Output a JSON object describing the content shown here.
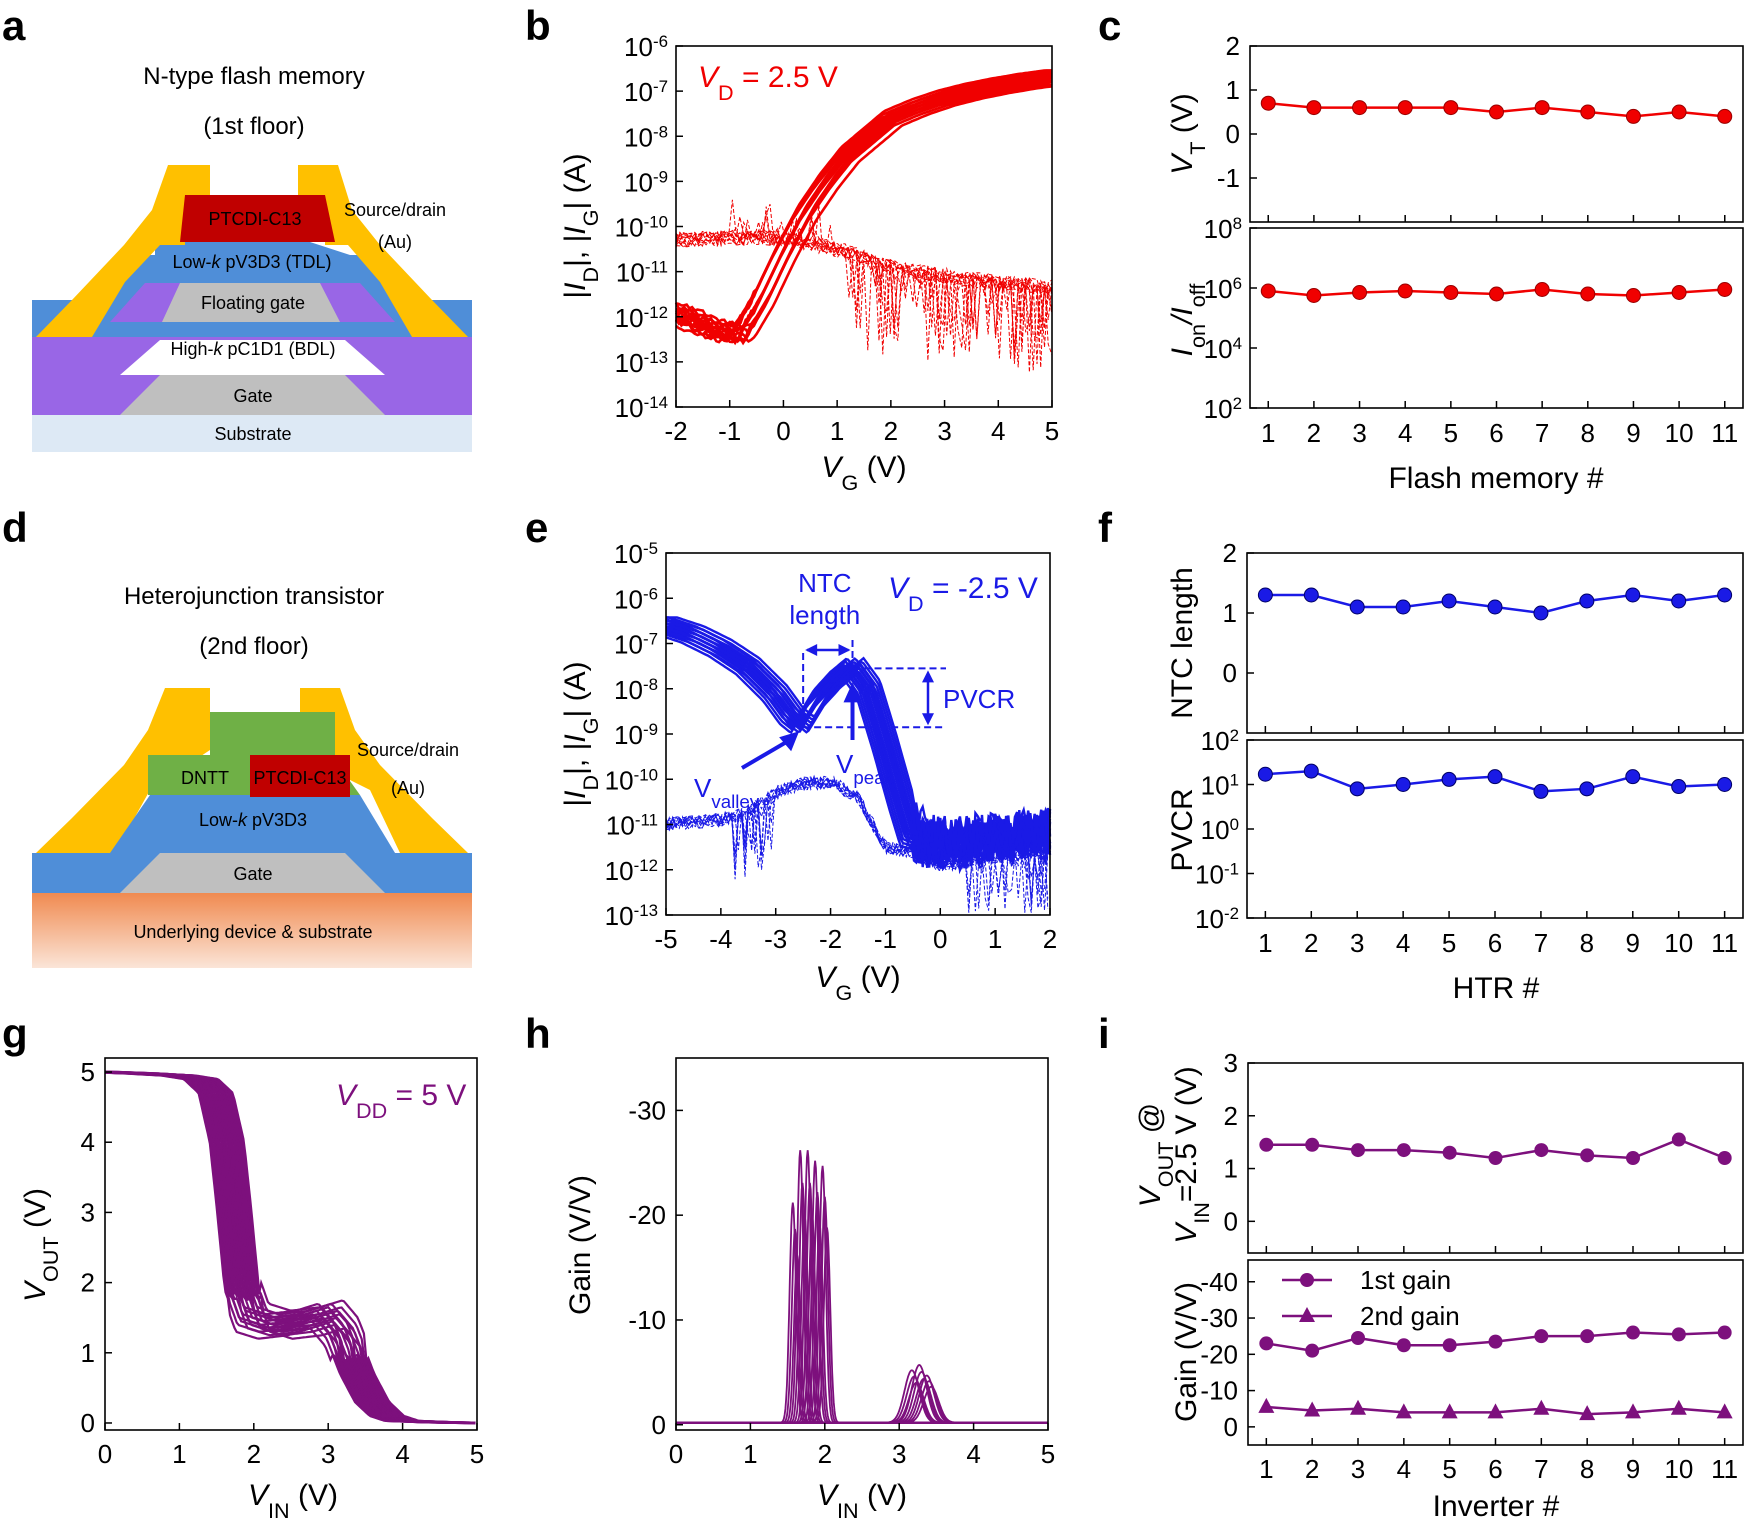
{
  "panels": {
    "a": "a",
    "b": "b",
    "c": "c",
    "d": "d",
    "e": "e",
    "f": "f",
    "g": "g",
    "h": "h",
    "i": "i"
  },
  "colors": {
    "red": "#f00000",
    "blue": "#1a1ae6",
    "purple": "#7d107d",
    "gold": "#ffc000",
    "blue_layer": "#4f8ed8",
    "purple_layer": "#9966e6",
    "gray": "#bfbfbf",
    "red_layer": "#c00000",
    "green": "#6fb046",
    "substrate": "#dde9f5",
    "orange": "#f4a46c"
  },
  "schematic_a": {
    "title": "N-type flash memory",
    "subtitle": "(1st floor)",
    "layers": {
      "semiconductor": "PTCDI-C13",
      "tdl_prefix": "Low-",
      "tdl_k": "k",
      "tdl_suffix": " pV3D3 (TDL)",
      "floating_gate": "Floating gate",
      "bdl_prefix": "High-",
      "bdl_k": "k",
      "bdl_suffix": " pC1D1 (BDL)",
      "gate": "Gate",
      "substrate": "Substrate"
    },
    "source_drain_label": "Source/drain",
    "source_drain_material": "(Au)"
  },
  "schematic_d": {
    "title": "Heterojunction transistor",
    "subtitle": "(2nd floor)",
    "layers": {
      "p_semiconductor": "DNTT",
      "n_semiconductor": "PTCDI-C13",
      "dielectric_prefix": "Low-",
      "dielectric_k": "k",
      "dielectric_suffix": " pV3D3",
      "gate": "Gate",
      "substrate": "Underlying device & substrate"
    },
    "source_drain_label": "Source/drain",
    "source_drain_material": "(Au)"
  },
  "chart_data": [
    {
      "panel": "b",
      "type": "line",
      "title": "V_D = 2.5 V",
      "annotation": {
        "v": "V",
        "sub": "D",
        "rest": " = 2.5 V"
      },
      "xlabel": {
        "v": "V",
        "sub": "G",
        "rest": " (V)"
      },
      "ylabel": "|I_D|, |I_G| (A)",
      "xlim": [
        -2,
        5
      ],
      "xticks": [
        -2,
        -1,
        0,
        1,
        2,
        3,
        4,
        5
      ],
      "ylim_exp": [
        -14,
        -6
      ],
      "yticks_exp": [
        -14,
        -13,
        -12,
        -11,
        -10,
        -9,
        -8,
        -7,
        -6
      ],
      "series": [
        {
          "name": "I_D",
          "x": [
            -2,
            -1.6,
            -1.2,
            -0.8,
            -0.4,
            0,
            0.4,
            0.8,
            1.2,
            1.6,
            2,
            2.5,
            3,
            3.5,
            4,
            4.5,
            5
          ],
          "log10_y": [
            -11.9,
            -12.1,
            -12.3,
            -12.4,
            -11.6,
            -10.6,
            -9.7,
            -9,
            -8.4,
            -8,
            -7.6,
            -7.35,
            -7.15,
            -7,
            -6.88,
            -6.78,
            -6.7
          ]
        },
        {
          "name": "I_G",
          "x": [
            -2,
            -1,
            0,
            1,
            2,
            3,
            4,
            5
          ],
          "log10_y": [
            -10.3,
            -10.25,
            -10.25,
            -10.5,
            -10.9,
            -11.1,
            -11.25,
            -11.35
          ]
        }
      ]
    },
    {
      "panel": "c",
      "type": "line",
      "xlabel": "Flash memory #",
      "categories": [
        "1",
        "2",
        "3",
        "4",
        "5",
        "6",
        "7",
        "8",
        "9",
        "10",
        "11"
      ],
      "subplots": [
        {
          "ylabel": "V_T (V)",
          "ylabel_main": "V",
          "ylabel_sub": "T",
          "ylabel_rest": " (V)",
          "ylim": [
            -2,
            2
          ],
          "yticks": [
            -1,
            0,
            1,
            2
          ],
          "values": [
            0.7,
            0.6,
            0.6,
            0.6,
            0.6,
            0.5,
            0.6,
            0.5,
            0.4,
            0.5,
            0.4
          ]
        },
        {
          "ylabel": "I_on/I_off",
          "ylabel_a": "I",
          "ylabel_sa": "on",
          "ylabel_b": "/I",
          "ylabel_sb": "off",
          "scale": "log",
          "ylim_exp": [
            2,
            8
          ],
          "yticks_exp": [
            2,
            4,
            6,
            8
          ],
          "values_log10": [
            5.9,
            5.75,
            5.85,
            5.9,
            5.85,
            5.8,
            5.95,
            5.8,
            5.75,
            5.85,
            5.95
          ]
        }
      ]
    },
    {
      "panel": "e",
      "type": "line",
      "annotation": {
        "v": "V",
        "sub": "D",
        "rest": " = -2.5 V"
      },
      "xlabel": {
        "v": "V",
        "sub": "G",
        "rest": " (V)"
      },
      "ylabel": "|I_D|, |I_G| (A)",
      "xlim": [
        -5,
        2
      ],
      "xticks": [
        -5,
        -4,
        -3,
        -2,
        -1,
        0,
        1,
        2
      ],
      "ylim_exp": [
        -13,
        -5
      ],
      "yticks_exp": [
        -13,
        -12,
        -11,
        -10,
        -9,
        -8,
        -7,
        -6,
        -5
      ],
      "labels": {
        "ntc_line1": "NTC",
        "ntc_line2": "length",
        "pvcr": "PVCR",
        "valley_main": "V",
        "valley_sub": "valley",
        "peak_main": "V",
        "peak_sub": "peak"
      },
      "series": [
        {
          "name": "I_D",
          "x": [
            -5,
            -4.5,
            -4,
            -3.5,
            -3,
            -2.7,
            -2.5,
            -2.2,
            -1.9,
            -1.6,
            -1.3,
            -1,
            -0.7,
            -0.5,
            -0.2,
            0.3,
            1,
            2
          ],
          "log10_y": [
            -6.6,
            -6.8,
            -7.1,
            -7.5,
            -8.1,
            -8.6,
            -8.8,
            -8.2,
            -7.8,
            -7.5,
            -8,
            -9.2,
            -10.5,
            -11.3,
            -11.4,
            -11.4,
            -11.3,
            -11.2
          ]
        },
        {
          "name": "I_G",
          "x": [
            -5,
            -4.5,
            -4,
            -3.5,
            -3,
            -2.5,
            -2,
            -1.5,
            -1,
            -0.5,
            0,
            1,
            2
          ],
          "log10_y": [
            -11,
            -10.95,
            -10.9,
            -10.7,
            -10.3,
            -10.1,
            -10.05,
            -10.4,
            -11.5,
            -11.6,
            -11.9,
            -11.7,
            -11.6
          ]
        }
      ]
    },
    {
      "panel": "f",
      "type": "line",
      "xlabel": "HTR #",
      "categories": [
        "1",
        "2",
        "3",
        "4",
        "5",
        "6",
        "7",
        "8",
        "9",
        "10",
        "11"
      ],
      "subplots": [
        {
          "ylabel": "NTC length",
          "ylim": [
            -1,
            2
          ],
          "yticks": [
            0,
            1,
            2
          ],
          "values": [
            1.3,
            1.3,
            1.1,
            1.1,
            1.2,
            1.1,
            1.0,
            1.2,
            1.3,
            1.2,
            1.3
          ]
        },
        {
          "ylabel": "PVCR",
          "scale": "log",
          "ylim_exp": [
            -2,
            2
          ],
          "yticks_exp": [
            -2,
            -1,
            0,
            1,
            2
          ],
          "values": [
            17,
            20,
            8,
            10,
            13,
            15,
            7,
            8,
            15,
            9,
            10
          ]
        }
      ]
    },
    {
      "panel": "g",
      "type": "line",
      "annotation": {
        "v": "V",
        "sub": "DD",
        "rest": " = 5 V"
      },
      "xlabel": {
        "v": "V",
        "sub": "IN",
        "rest": " (V)"
      },
      "ylabel": {
        "v": "V",
        "sub": "OUT",
        "rest": " (V)"
      },
      "xlim": [
        0,
        5
      ],
      "xticks": [
        0,
        1,
        2,
        3,
        4,
        5
      ],
      "ylim": [
        0,
        5
      ],
      "yticks": [
        0,
        1,
        2,
        3,
        4,
        5
      ],
      "series": [
        {
          "name": "V_OUT",
          "x": [
            0,
            0.5,
            1,
            1.3,
            1.5,
            1.65,
            1.75,
            1.85,
            2,
            2.3,
            2.7,
            3,
            3.2,
            3.4,
            3.6,
            3.8,
            4,
            4.5,
            5
          ],
          "y": [
            5,
            4.98,
            4.95,
            4.9,
            4.7,
            4,
            3,
            1.9,
            1.45,
            1.35,
            1.4,
            1.5,
            1.25,
            0.7,
            0.3,
            0.1,
            0.03,
            0.01,
            0
          ]
        }
      ]
    },
    {
      "panel": "h",
      "type": "line",
      "xlabel": {
        "v": "V",
        "sub": "IN",
        "rest": " (V)"
      },
      "ylabel": "Gain (V/V)",
      "xlim": [
        0,
        5
      ],
      "xticks": [
        0,
        1,
        2,
        3,
        4,
        5
      ],
      "ylim": [
        -35,
        0.5
      ],
      "yticks": [
        0,
        -10,
        -20,
        -30
      ],
      "series": [
        {
          "name": "Gain",
          "peaks_x": [
            1.6,
            1.7,
            1.8,
            1.9,
            2.0,
            3.2,
            3.3,
            3.4
          ],
          "peaks_y": [
            -21,
            -26,
            -26,
            -25,
            -24.5,
            -5,
            -5.5,
            -4.5
          ]
        }
      ]
    },
    {
      "panel": "i",
      "type": "line",
      "xlabel": "Inverter #",
      "categories": [
        "1",
        "2",
        "3",
        "4",
        "5",
        "6",
        "7",
        "8",
        "9",
        "10",
        "11"
      ],
      "subplots": [
        {
          "ylabel_line1": "V_OUT @",
          "ylabel_line2": "V_IN=2.5 V (V)",
          "l1_main": "V",
          "l1_sub": "OUT",
          "l1_rest": " @",
          "l2_main": "V",
          "l2_sub": "IN",
          "l2_rest": "=2.5 V (V)",
          "ylim": [
            -0.6,
            3
          ],
          "yticks": [
            0,
            1,
            2,
            3
          ],
          "values": [
            1.45,
            1.45,
            1.35,
            1.35,
            1.3,
            1.2,
            1.35,
            1.25,
            1.2,
            1.55,
            1.2
          ]
        },
        {
          "ylabel": "Gain (V/V)",
          "ylim": [
            5,
            -46
          ],
          "yticks": [
            0,
            -10,
            -20,
            -30,
            -40
          ],
          "series": [
            {
              "name": "1st gain",
              "marker": "circle",
              "values": [
                -23,
                -21,
                -24.5,
                -22.5,
                -22.5,
                -23.5,
                -25,
                -25,
                -26,
                -25.5,
                -26
              ]
            },
            {
              "name": "2nd gain",
              "marker": "triangle",
              "values": [
                -5.5,
                -4.5,
                -5,
                -4,
                -4,
                -4,
                -5,
                -3.5,
                -4,
                -5,
                -4
              ]
            }
          ]
        }
      ]
    }
  ]
}
